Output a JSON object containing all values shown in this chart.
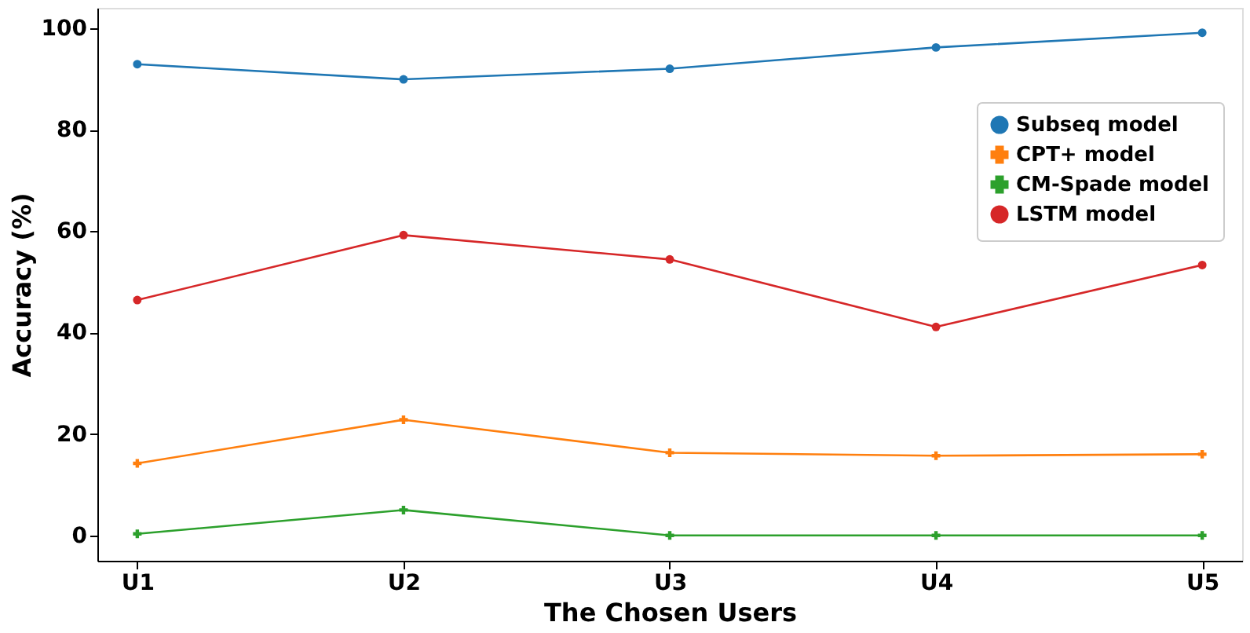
{
  "chart_data": {
    "type": "line",
    "xlabel": "The Chosen Users",
    "ylabel": "Accuracy (%)",
    "categories": [
      "U1",
      "U2",
      "U3",
      "U4",
      "U5"
    ],
    "ylim": [
      -5,
      104
    ],
    "yticks": [
      0,
      20,
      40,
      60,
      80,
      100
    ],
    "grid": false,
    "legend": "right",
    "series": [
      {
        "name": "Subseq model",
        "color": "#1f77b4",
        "marker": "circle",
        "values": [
          92.9,
          89.9,
          92.0,
          96.2,
          99.1
        ]
      },
      {
        "name": "CPT+ model",
        "color": "#ff7f0e",
        "marker": "cross",
        "values": [
          14.2,
          22.8,
          16.3,
          15.7,
          16.0
        ]
      },
      {
        "name": "CM-Spade model",
        "color": "#2ca02c",
        "marker": "cross",
        "values": [
          0.3,
          5.0,
          0.0,
          0.0,
          0.0
        ]
      },
      {
        "name": "LSTM model",
        "color": "#d62728",
        "marker": "circle",
        "values": [
          46.4,
          59.2,
          54.4,
          41.1,
          53.3
        ]
      }
    ]
  }
}
